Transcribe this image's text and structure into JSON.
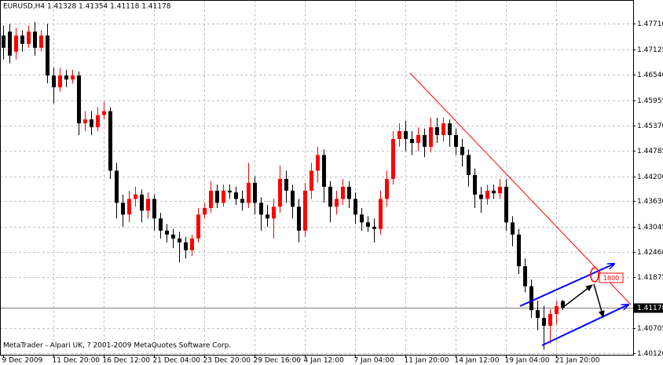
{
  "chart_data": {
    "type": "candlestick",
    "title": "EURUSD,H4  1.41328 1.41354 1.41118 1.41178",
    "footer": "MetaTrader - Alpari UK, ? 2001-2009 MetaQuotes Software Corp.",
    "annotation": "1800",
    "up_color": "#ff0000",
    "down_color": "#000000",
    "grid": true,
    "ylim": [
      1.40092,
      1.48259
    ],
    "yticks": [
      {
        "value": 1.4771,
        "label": "1.47710"
      },
      1.47125,
      {
        "value": 1.4654,
        "label": "1.46540"
      },
      1.45955,
      {
        "value": 1.4537,
        "label": "1.45370"
      },
      1.44785,
      {
        "value": 1.442,
        "label": "1.44200"
      },
      {
        "value": 1.4363,
        "label": "1.43630"
      },
      1.43045,
      {
        "value": 1.4246,
        "label": "1.42460"
      },
      1.41875,
      1.40705,
      {
        "value": 1.4012,
        "label": "1.40120"
      }
    ],
    "categories": [
      "9 Dec 2009",
      null,
      null,
      null,
      null,
      null,
      null,
      null,
      "11 Dec 20:00",
      null,
      null,
      null,
      null,
      null,
      null,
      null,
      "16 Dec 12:00",
      null,
      null,
      null,
      null,
      null,
      null,
      null,
      "21 Dec 04:00",
      null,
      null,
      null,
      null,
      null,
      null,
      null,
      "23 Dec 20:00",
      null,
      null,
      null,
      null,
      null,
      null,
      null,
      "29 Dec 16:00",
      null,
      null,
      null,
      null,
      null,
      null,
      null,
      "4 Jan 12:00",
      null,
      null,
      null,
      null,
      null,
      null,
      null,
      "7 Jan 04:00",
      null,
      null,
      null,
      null,
      null,
      null,
      null,
      "11 Jan 20:00",
      null,
      null,
      null,
      null,
      null,
      null,
      null,
      "14 Jan 12:00",
      null,
      null,
      null,
      null,
      null,
      null,
      null,
      "19 Jan 04:00",
      null,
      null,
      null,
      null,
      null,
      null,
      null,
      "21 Jan 20:00",
      null
    ],
    "open": [
      1.4744,
      1.4753,
      1.4707,
      1.4744,
      1.4725,
      1.4753,
      1.4716,
      1.4744,
      1.4652,
      1.4625,
      1.4652,
      1.4643,
      1.4652,
      1.4542,
      1.4551,
      1.4533,
      1.4561,
      1.457,
      1.4433,
      1.4359,
      1.4332,
      1.4368,
      1.4378,
      1.4341,
      1.4368,
      1.4323,
      1.4295,
      1.4286,
      1.4277,
      1.4268,
      1.425,
      1.4277,
      1.4332,
      1.4347,
      1.4387,
      1.4359,
      1.4387,
      1.4383,
      1.4368,
      1.4359,
      1.4405,
      1.4359,
      1.4332,
      1.4323,
      1.435,
      1.4414,
      1.4387,
      1.435,
      1.4295,
      1.4387,
      1.4433,
      1.4469,
      1.4396,
      1.435,
      1.4368,
      1.4396,
      1.4368,
      1.4332,
      1.4314,
      1.4304,
      1.4299,
      1.4368,
      1.4414,
      1.4506,
      1.4524,
      1.4506,
      1.4497,
      1.4515,
      1.4488,
      1.4533,
      1.4515,
      1.4542,
      1.4515,
      1.4488,
      1.4469,
      1.4423,
      1.4378,
      1.4368,
      1.4387,
      1.4381,
      1.4396,
      1.4314,
      1.4286,
      1.4213,
      1.4167,
      1.4112,
      1.4094,
      1.4076,
      1.4103,
      1.41328
    ],
    "high": [
      1.4767,
      1.4771,
      1.4762,
      1.4756,
      1.4767,
      1.4775,
      1.4756,
      1.4771,
      1.467,
      1.467,
      1.4665,
      1.4665,
      1.4661,
      1.457,
      1.457,
      1.4579,
      1.4592,
      1.4579,
      1.4451,
      1.4378,
      1.4387,
      1.4396,
      1.439,
      1.4383,
      1.4378,
      1.4336,
      1.431,
      1.4299,
      1.4292,
      1.4281,
      1.4286,
      1.4347,
      1.4359,
      1.4409,
      1.4401,
      1.4401,
      1.4401,
      1.4396,
      1.4387,
      1.4451,
      1.442,
      1.4372,
      1.4354,
      1.4368,
      1.4445,
      1.4433,
      1.4401,
      1.4368,
      1.4405,
      1.4451,
      1.4488,
      1.4482,
      1.4409,
      1.4387,
      1.4414,
      1.4409,
      1.4383,
      1.4347,
      1.4328,
      1.4323,
      1.4387,
      1.4433,
      1.4524,
      1.4542,
      1.4548,
      1.4524,
      1.4533,
      1.453,
      1.4555,
      1.4555,
      1.4555,
      1.4551,
      1.453,
      1.4506,
      1.4482,
      1.4438,
      1.4396,
      1.4401,
      1.4401,
      1.4414,
      1.4414,
      1.4328,
      1.4299,
      1.4231,
      1.4182,
      1.4134,
      1.4122,
      1.4114,
      1.4134,
      1.41354
    ],
    "low": [
      1.4689,
      1.468,
      1.4689,
      1.4707,
      1.4716,
      1.4698,
      1.4707,
      1.4634,
      1.4588,
      1.4615,
      1.4625,
      1.4634,
      1.4515,
      1.4524,
      1.4515,
      1.4524,
      1.4551,
      1.4414,
      1.4323,
      1.4304,
      1.4314,
      1.435,
      1.4314,
      1.4323,
      1.4295,
      1.4277,
      1.4268,
      1.4255,
      1.4222,
      1.4231,
      1.4237,
      1.4268,
      1.4323,
      1.4336,
      1.4347,
      1.435,
      1.4368,
      1.4354,
      1.4341,
      1.4347,
      1.4332,
      1.4295,
      1.4304,
      1.4277,
      1.4336,
      1.4359,
      1.4323,
      1.4268,
      1.4281,
      1.4368,
      1.4405,
      1.4359,
      1.4314,
      1.4332,
      1.4354,
      1.4347,
      1.431,
      1.4295,
      1.4292,
      1.4268,
      1.4286,
      1.435,
      1.4401,
      1.4488,
      1.4478,
      1.4469,
      1.4478,
      1.4464,
      1.4475,
      1.4497,
      1.45,
      1.4488,
      1.4469,
      1.4442,
      1.4396,
      1.4347,
      1.4336,
      1.4354,
      1.4368,
      1.4368,
      1.4295,
      1.4259,
      1.4195,
      1.4153,
      1.4094,
      1.4066,
      1.4021,
      1.4035,
      1.4079,
      1.41118
    ],
    "close": [
      1.4716,
      1.4698,
      1.4744,
      1.4725,
      1.4753,
      1.4716,
      1.4744,
      1.4652,
      1.4625,
      1.4652,
      1.4643,
      1.4652,
      1.4542,
      1.4551,
      1.4533,
      1.4561,
      1.457,
      1.4433,
      1.4359,
      1.4332,
      1.4368,
      1.4378,
      1.4341,
      1.4368,
      1.4323,
      1.4295,
      1.4286,
      1.4277,
      1.4268,
      1.425,
      1.4277,
      1.4332,
      1.4347,
      1.4387,
      1.4359,
      1.4387,
      1.4383,
      1.4368,
      1.4359,
      1.4405,
      1.4359,
      1.4332,
      1.4323,
      1.435,
      1.4414,
      1.4387,
      1.435,
      1.4295,
      1.4387,
      1.4433,
      1.4469,
      1.4396,
      1.435,
      1.4368,
      1.4396,
      1.4368,
      1.4332,
      1.4314,
      1.4304,
      1.4299,
      1.4368,
      1.4414,
      1.4506,
      1.4524,
      1.4506,
      1.4497,
      1.4515,
      1.4488,
      1.4533,
      1.4515,
      1.4542,
      1.4515,
      1.4488,
      1.4469,
      1.4423,
      1.4378,
      1.4368,
      1.4387,
      1.4381,
      1.4396,
      1.4314,
      1.4286,
      1.4213,
      1.4167,
      1.4112,
      1.4094,
      1.4076,
      1.4103,
      1.4121,
      1.41178
    ]
  }
}
